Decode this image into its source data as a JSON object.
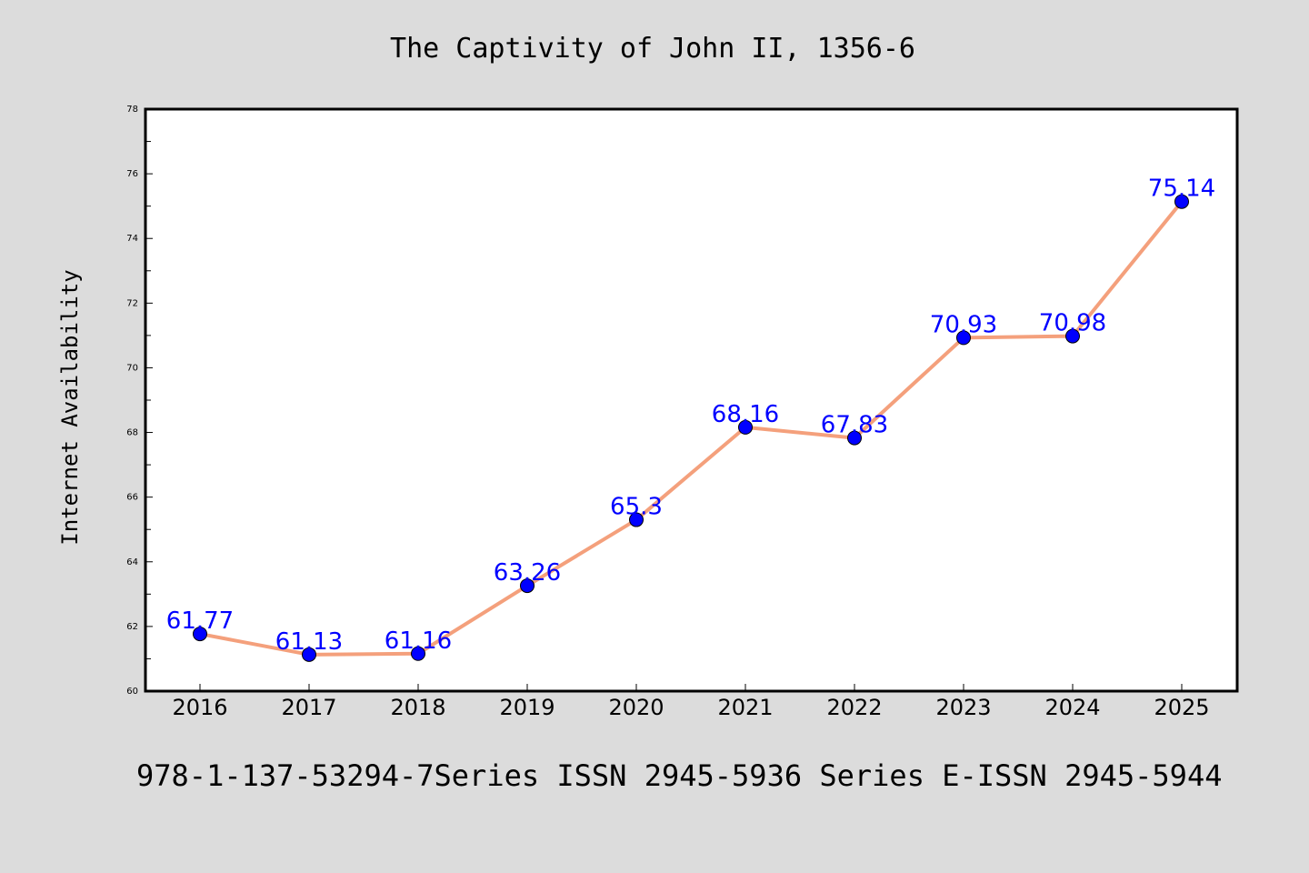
{
  "chart_data": {
    "type": "line",
    "title": "The Captivity of John II, 1356-6",
    "xlabel": "",
    "ylabel": "Internet Availability",
    "categories": [
      "2016",
      "2017",
      "2018",
      "2019",
      "2020",
      "2021",
      "2022",
      "2023",
      "2024",
      "2025"
    ],
    "series": [
      {
        "values": [
          61.77,
          61.13,
          61.16,
          63.26,
          65.3,
          68.16,
          67.83,
          70.93,
          70.98,
          75.14
        ],
        "labels": [
          "61.77",
          "61.13",
          "61.16",
          "63.26",
          "65.3",
          "68.16",
          "67.83",
          "70.93",
          "70.98",
          "75.14"
        ],
        "line_color": "#f4a07c",
        "marker_color": "#0000ff"
      }
    ],
    "ylim": [
      60,
      78
    ],
    "yticks": [
      "60",
      "62",
      "64",
      "66",
      "68",
      "70",
      "72",
      "74",
      "76",
      "78"
    ],
    "grid": false,
    "legend": "none"
  },
  "footer": "978-1-137-53294-7Series ISSN 2945-5936 Series E-ISSN 2945-5944",
  "colors": {
    "background": "#dcdcdc",
    "plot_background": "#ffffff",
    "line": "#f4a07c",
    "marker": "#0000ff",
    "data_label": "#0000ff"
  }
}
